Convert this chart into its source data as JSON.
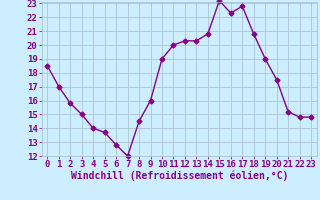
{
  "x": [
    0,
    1,
    2,
    3,
    4,
    5,
    6,
    7,
    8,
    9,
    10,
    11,
    12,
    13,
    14,
    15,
    16,
    17,
    18,
    19,
    20,
    21,
    22,
    23
  ],
  "y": [
    18.5,
    17.0,
    15.8,
    15.0,
    14.0,
    13.7,
    12.8,
    12.0,
    14.5,
    16.0,
    19.0,
    20.0,
    20.3,
    20.3,
    20.8,
    23.2,
    22.3,
    22.8,
    20.8,
    19.0,
    17.5,
    15.2,
    14.8,
    14.8
  ],
  "line_color": "#880088",
  "marker": "D",
  "markersize": 2.5,
  "linewidth": 1.0,
  "bg_color": "#cceeff",
  "grid_color": "#aabbcc",
  "xlabel": "Windchill (Refroidissement éolien,°C)",
  "xlabel_fontsize": 7,
  "tick_fontsize": 6.5,
  "ylim": [
    12,
    23
  ],
  "xlim": [
    -0.5,
    23.5
  ],
  "yticks": [
    12,
    13,
    14,
    15,
    16,
    17,
    18,
    19,
    20,
    21,
    22,
    23
  ],
  "xticks": [
    0,
    1,
    2,
    3,
    4,
    5,
    6,
    7,
    8,
    9,
    10,
    11,
    12,
    13,
    14,
    15,
    16,
    17,
    18,
    19,
    20,
    21,
    22,
    23
  ]
}
